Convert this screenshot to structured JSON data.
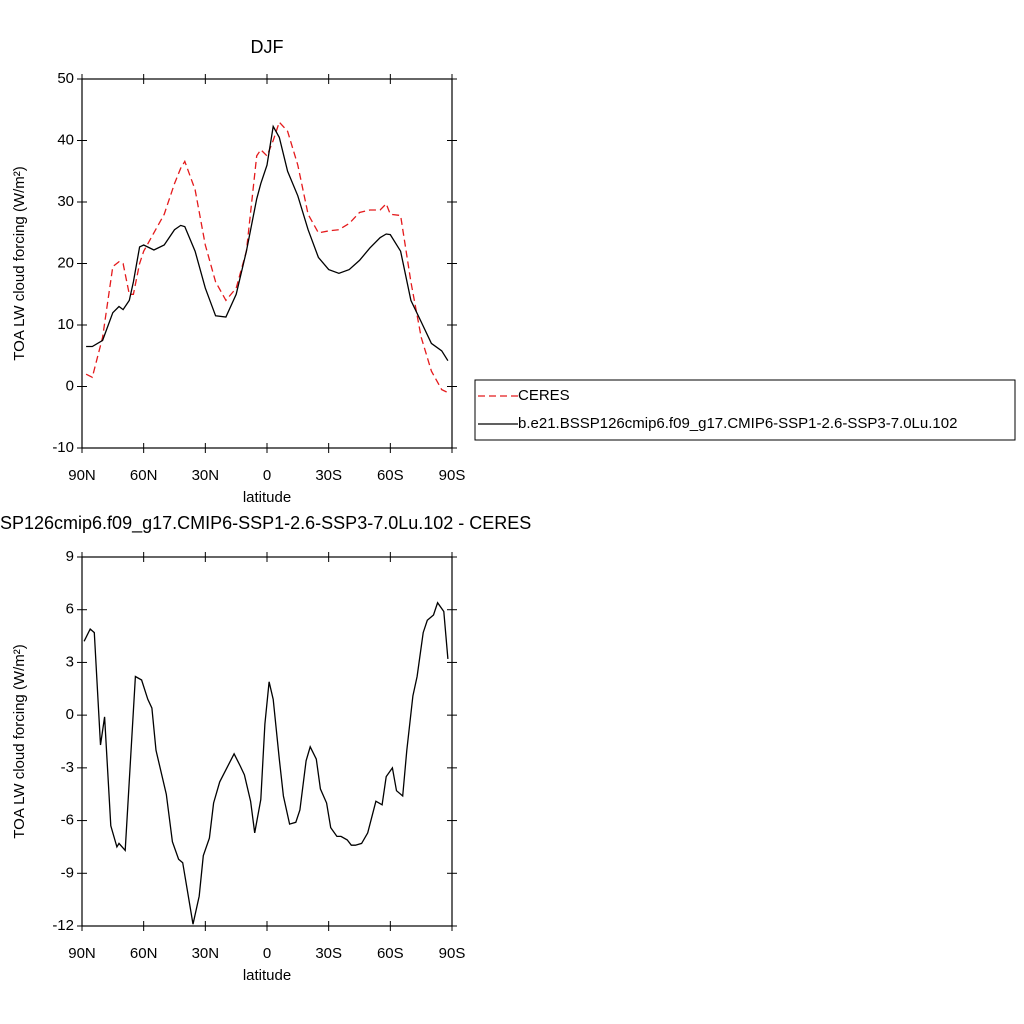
{
  "chart_data": [
    {
      "type": "line",
      "title": "DJF",
      "xlabel": "latitude",
      "ylabel": "TOA LW cloud forcing (W/m²)",
      "x": [
        88,
        85,
        80,
        75,
        72,
        70,
        67,
        65,
        62,
        60,
        55,
        50,
        45,
        42,
        40,
        35,
        30,
        25,
        20,
        15,
        10,
        5,
        3,
        0,
        -3,
        -6,
        -10,
        -15,
        -20,
        -25,
        -30,
        -35,
        -40,
        -45,
        -50,
        -55,
        -58,
        -60,
        -65,
        -70,
        -75,
        -80,
        -85,
        -88
      ],
      "series": [
        {
          "name": "CERES",
          "color": "#e41a1c",
          "line_style": "dashed",
          "values": [
            2,
            1.5,
            8,
            19.5,
            20.3,
            20,
            15,
            15,
            20,
            22,
            25,
            28,
            33,
            35.5,
            36.6,
            32,
            23,
            17,
            14,
            16,
            22,
            37.5,
            38.5,
            37.5,
            40,
            43,
            41.5,
            36,
            28,
            25,
            25.3,
            25.5,
            26.5,
            28.3,
            28.7,
            28.7,
            29.7,
            28,
            27.8,
            17,
            8,
            2.5,
            -0.5,
            -1
          ]
        },
        {
          "name": "b.e21.BSSP126cmip6.f09_g17.CMIP6-SSP1-2.6-SSP3-7.0Lu.102",
          "color": "#000000",
          "line_style": "solid",
          "values": [
            6.5,
            6.5,
            7.5,
            12,
            13,
            12.5,
            14,
            17,
            22.7,
            23,
            22.2,
            23,
            25.5,
            26.2,
            26,
            22,
            16,
            11.5,
            11.3,
            15,
            22,
            30.5,
            33,
            36,
            42.3,
            40.5,
            35,
            31,
            25.5,
            21,
            19,
            18.4,
            19,
            20.5,
            22.5,
            24.2,
            24.8,
            24.7,
            22,
            14,
            10.5,
            7,
            5.8,
            4.2
          ]
        }
      ],
      "xlim": [
        90,
        -90
      ],
      "xticks": [
        {
          "value": 90,
          "label": "90N"
        },
        {
          "value": 60,
          "label": "60N"
        },
        {
          "value": 30,
          "label": "30N"
        },
        0,
        {
          "value": -30,
          "label": "30S"
        },
        {
          "value": -60,
          "label": "60S"
        },
        {
          "value": -90,
          "label": "90S"
        }
      ],
      "ylim": [
        -10,
        50
      ],
      "yticks": [
        -10,
        0,
        10,
        20,
        30,
        40,
        50
      ],
      "legend": "right"
    },
    {
      "type": "line",
      "title": "SP126cmip6.f09_g17.CMIP6-SSP1-2.6-SSP3-7.0Lu.102 - CERES",
      "xlabel": "latitude",
      "ylabel": "TOA LW cloud forcing (W/m²)",
      "x": [
        89,
        86,
        84,
        81,
        79,
        76,
        73,
        72,
        69,
        64,
        61,
        58,
        56,
        54,
        49,
        46,
        43,
        41,
        38,
        36,
        33,
        31,
        28,
        26,
        23,
        16,
        13,
        11,
        8,
        6,
        3,
        1,
        -1,
        -3,
        -6,
        -8,
        -11,
        -14,
        -16,
        -19,
        -21,
        -24,
        -26,
        -29,
        -31,
        -34,
        -36,
        -39,
        -41,
        -43,
        -46,
        -49,
        -51,
        -53,
        -56,
        -58,
        -61,
        -63,
        -66,
        -68,
        -71,
        -73,
        -76,
        -78,
        -81,
        -83,
        -86,
        -88
      ],
      "series": [
        {
          "color": "#000000",
          "line_style": "solid",
          "values": [
            4.2,
            4.9,
            4.7,
            -1.7,
            -0.1,
            -6.3,
            -7.5,
            -7.3,
            -7.7,
            2.2,
            2.0,
            0.9,
            0.4,
            -2,
            -4.5,
            -7.2,
            -8.2,
            -8.4,
            -10.5,
            -11.9,
            -10.3,
            -8,
            -7,
            -5,
            -3.8,
            -2.2,
            -2.9,
            -3.4,
            -4.9,
            -6.7,
            -4.8,
            -0.5,
            1.9,
            0.9,
            -2.5,
            -4.6,
            -6.2,
            -6.1,
            -5.4,
            -2.6,
            -1.8,
            -2.5,
            -4.2,
            -5,
            -6.4,
            -6.9,
            -6.9,
            -7.1,
            -7.4,
            -7.4,
            -7.3,
            -6.7,
            -5.8,
            -4.9,
            -5.1,
            -3.5,
            -3,
            -4.3,
            -4.6,
            -2,
            1.1,
            2.2,
            4.7,
            5.4,
            5.7,
            6.4,
            5.9,
            3.2
          ]
        }
      ],
      "xlim": [
        90,
        -90
      ],
      "xticks": [
        {
          "value": 90,
          "label": "90N"
        },
        {
          "value": 60,
          "label": "60N"
        },
        {
          "value": 30,
          "label": "30N"
        },
        0,
        {
          "value": -30,
          "label": "30S"
        },
        {
          "value": -60,
          "label": "60S"
        },
        {
          "value": -90,
          "label": "90S"
        }
      ],
      "ylim": [
        -12,
        9
      ],
      "yticks": [
        -12,
        -9,
        -6,
        -3,
        0,
        3,
        6,
        9
      ]
    }
  ]
}
